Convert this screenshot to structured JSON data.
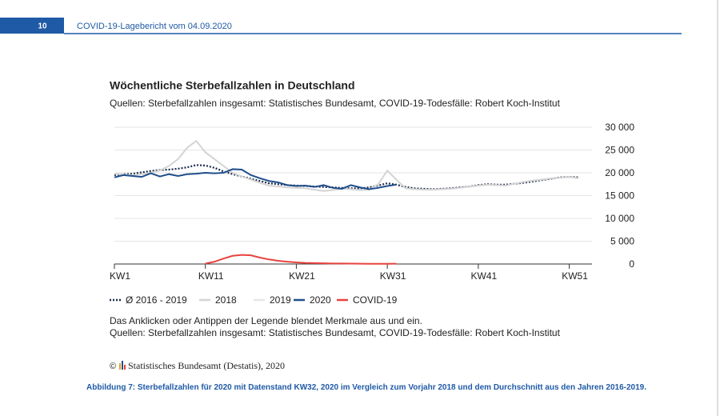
{
  "header": {
    "page_number": "10",
    "title": "COVID-19-Lagebericht vom 04.09.2020"
  },
  "chart_data": {
    "type": "line",
    "title": "Wöchentliche Sterbefallzahlen in Deutschland",
    "subtitle": "Quellen: Sterbefallzahlen insgesamt: Statistisches Bundesamt, COVID-19-Todesfälle: Robert Koch-Institut",
    "x": [
      1,
      2,
      3,
      4,
      5,
      6,
      7,
      8,
      9,
      10,
      11,
      12,
      13,
      14,
      15,
      16,
      17,
      18,
      19,
      20,
      21,
      22,
      23,
      24,
      25,
      26,
      27,
      28,
      29,
      30,
      31,
      32,
      33,
      34,
      35,
      36,
      37,
      38,
      39,
      40,
      41,
      42,
      43,
      44,
      45,
      46,
      47,
      48,
      49,
      50,
      51,
      52
    ],
    "xlim": [
      1,
      53.5
    ],
    "xticks": [
      {
        "value": 1,
        "label": "KW1"
      },
      {
        "value": 11,
        "label": "KW11"
      },
      {
        "value": 21,
        "label": "KW21"
      },
      {
        "value": 31,
        "label": "KW31"
      },
      {
        "value": 41,
        "label": "KW41"
      },
      {
        "value": 51,
        "label": "KW51"
      }
    ],
    "ylim": [
      0,
      30000
    ],
    "yticks": [
      0,
      {
        "value": 5000,
        "label": "5 000"
      },
      {
        "value": 10000,
        "label": "10 000"
      },
      {
        "value": 15000,
        "label": "15 000"
      },
      {
        "value": 20000,
        "label": "20 000"
      },
      {
        "value": 25000,
        "label": "25 000"
      },
      {
        "value": 30000,
        "label": "30 000"
      }
    ],
    "grid": true,
    "series": [
      {
        "name": "Ø 2016 - 2019",
        "color": "#1a2a4a",
        "style": "dotted",
        "visible": true,
        "values": [
          19500,
          19700,
          19800,
          20100,
          20400,
          20600,
          20700,
          20900,
          21200,
          21700,
          21600,
          21100,
          20300,
          19700,
          19200,
          18700,
          18200,
          17700,
          17500,
          17300,
          17200,
          17100,
          17000,
          16900,
          16800,
          16700,
          16600,
          16600,
          16800,
          17200,
          17700,
          17400,
          16900,
          16600,
          16500,
          16400,
          16500,
          16600,
          16800,
          17000,
          17300,
          17500,
          17400,
          17400,
          17600,
          17800,
          18100,
          18400,
          18700,
          19000,
          19100,
          19000
        ]
      },
      {
        "name": "2018",
        "color": "#d4d4d4",
        "style": "solid",
        "visible": true,
        "values": [
          19800,
          19600,
          19500,
          19700,
          20000,
          20500,
          21500,
          23000,
          25500,
          27000,
          24500,
          23000,
          21500,
          20000,
          19200,
          18500,
          17800,
          17200,
          17000,
          16800,
          16700,
          16600,
          16300,
          16000,
          16200,
          16500,
          16400,
          16200,
          16300,
          17500,
          20500,
          18500,
          16600,
          16400,
          16300,
          16300,
          16400,
          16500,
          16700,
          17000,
          17200,
          17400,
          17300,
          17200,
          17600,
          18000,
          18300,
          18500,
          18800,
          18900,
          19100,
          18800
        ]
      },
      {
        "name": "2019",
        "color": "#e6e6e6",
        "style": "solid",
        "visible": false
      },
      {
        "name": "2020",
        "color": "#1f4e8c",
        "style": "solid",
        "visible": true,
        "values": [
          19000,
          19500,
          19300,
          19100,
          19900,
          19200,
          19700,
          19300,
          19700,
          19800,
          20000,
          19900,
          20000,
          20800,
          20700,
          19500,
          18800,
          18200,
          17900,
          17300,
          17100,
          17200,
          16900,
          17300,
          16700,
          16500,
          17300,
          16800,
          16400,
          16700,
          17100,
          17400,
          null,
          null,
          null,
          null,
          null,
          null,
          null,
          null,
          null,
          null,
          null,
          null,
          null,
          null,
          null,
          null,
          null,
          null,
          null,
          null
        ]
      },
      {
        "name": "COVID-19",
        "color": "#e8433f",
        "style": "solid",
        "visible": true,
        "values": [
          null,
          null,
          null,
          null,
          null,
          null,
          null,
          null,
          null,
          null,
          100,
          500,
          1200,
          1800,
          2000,
          1900,
          1400,
          1000,
          700,
          500,
          350,
          250,
          200,
          150,
          120,
          100,
          80,
          60,
          50,
          50,
          50,
          60,
          null,
          null,
          null,
          null,
          null,
          null,
          null,
          null,
          null,
          null,
          null,
          null,
          null,
          null,
          null,
          null,
          null,
          null,
          null,
          null
        ]
      }
    ],
    "note": "Das Anklicken oder Antippen der Legende blendet Merkmale aus und ein.",
    "source": "Quellen: Sterbefallzahlen insgesamt: Statistisches Bundesamt, COVID-19-Todesfälle: Robert Koch-Institut"
  },
  "copyright": "Statistisches Bundesamt (Destatis), 2020",
  "caption": "Abbildung 7: Sterbefallzahlen für 2020 mit Datenstand KW32, 2020  im Vergleich zum Vorjahr 2018 und dem Durchschnitt aus den Jahren 2016-2019."
}
